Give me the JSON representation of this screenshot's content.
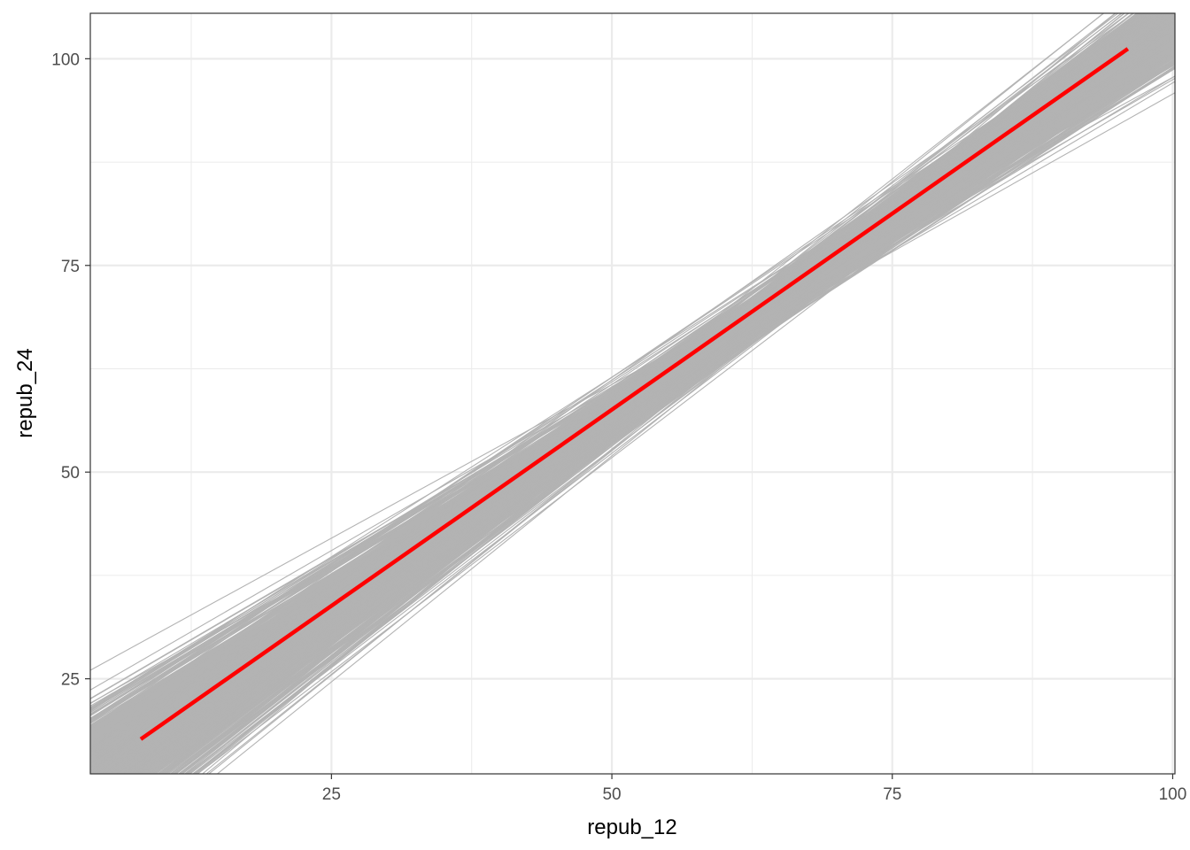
{
  "chart_data": {
    "type": "line",
    "title": "",
    "xlabel": "repub_12",
    "ylabel": "repub_24",
    "xlim": [
      3.5,
      100.2
    ],
    "ylim": [
      13.5,
      105.5
    ],
    "x_ticks": [
      25,
      50,
      75,
      100
    ],
    "x_tick_labels": [
      "25",
      "50",
      "75",
      "100"
    ],
    "y_ticks": [
      25,
      50,
      75,
      100
    ],
    "y_tick_labels": [
      "25",
      "50",
      "75",
      "100"
    ],
    "x_minor_ticks": [
      12.5,
      37.5,
      62.5,
      87.5
    ],
    "y_minor_ticks": [
      37.5,
      62.5,
      87.5
    ],
    "grid": true,
    "legend": "none",
    "series": [
      {
        "role": "fitted_line",
        "color": "#ff0000",
        "x": [
          8.0,
          96.0
        ],
        "y": [
          17.7,
          101.2
        ]
      },
      {
        "role": "bootstrap_fits",
        "color": "#b3b3b3",
        "count": 1000,
        "pivot_x": 65,
        "pivot_y": 71.2,
        "x_range": [
          3.5,
          100.2
        ],
        "slope_range": [
          0.69,
          1.2
        ]
      }
    ]
  },
  "colors": {
    "background": "#ffffff",
    "panel_border": "#333333",
    "grid_major": "#ebebeb",
    "grid_minor": "#ebebeb",
    "tick_text": "#4d4d4d",
    "axis_title": "#000000"
  }
}
